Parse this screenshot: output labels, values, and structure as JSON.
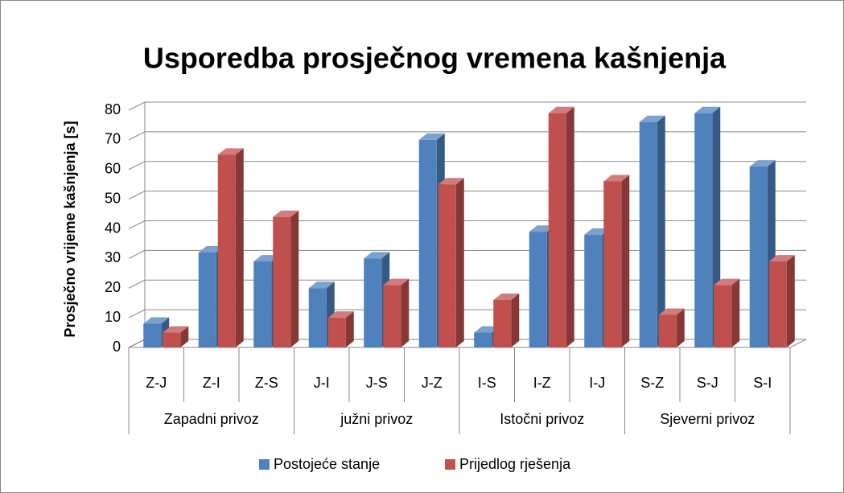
{
  "chart_data": {
    "type": "bar3d",
    "title": "Usporedba prosječnog vremena kašnjenja",
    "y_label": "Prosječno vrijeme kašnjenja [s]",
    "categories": [
      "Z-J",
      "Z-I",
      "Z-S",
      "J-I",
      "J-S",
      "J-Z",
      "I-S",
      "I-Z",
      "I-J",
      "S-Z",
      "S-J",
      "S-I"
    ],
    "groups": [
      "Zapadni privoz",
      "južni privoz",
      "Istočni privoz",
      "Sjeverni privoz"
    ],
    "series": [
      {
        "name": "Postojeće stanje",
        "color": "#4f81bd",
        "values": [
          8,
          32,
          29,
          20,
          30,
          70,
          5,
          39,
          38,
          76,
          79,
          61
        ]
      },
      {
        "name": "Prijedlog rješenja",
        "color": "#c0504d",
        "values": [
          5,
          65,
          44,
          10,
          21,
          55,
          16,
          79,
          56,
          11,
          21,
          29
        ]
      }
    ],
    "ylim": [
      0,
      80
    ],
    "yticks": [
      0,
      10,
      20,
      30,
      40,
      50,
      60,
      70,
      80
    ],
    "grid": true,
    "legend": "bottom"
  }
}
